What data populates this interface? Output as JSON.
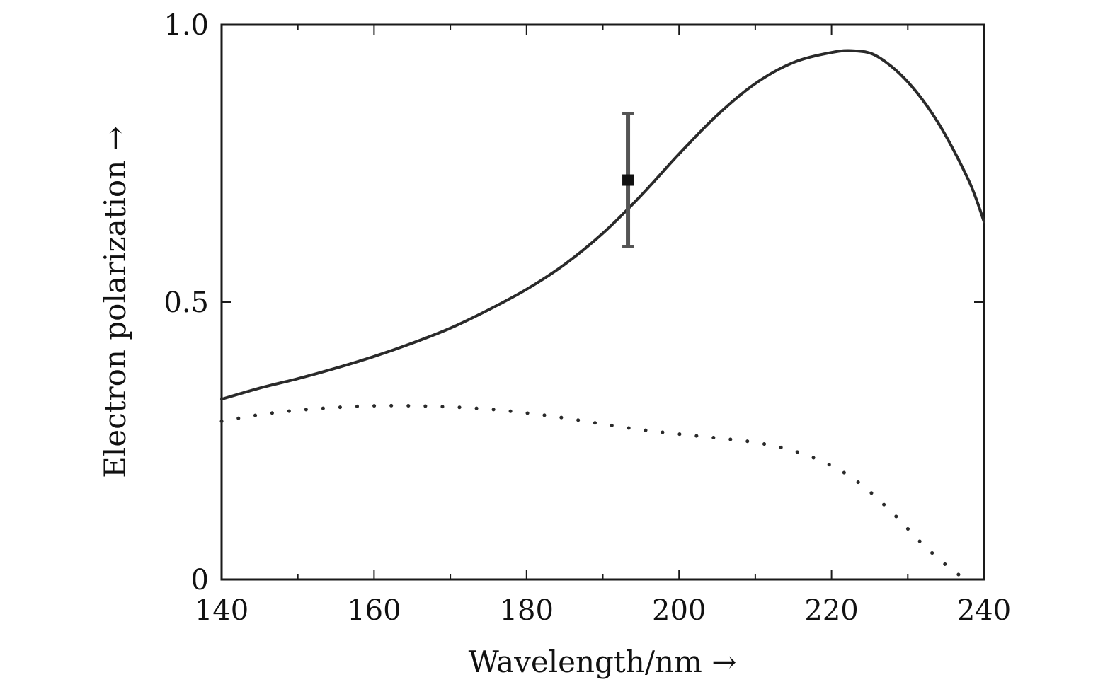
{
  "chart_data": {
    "type": "line",
    "title": "",
    "xlabel": "Wavelength/nm →",
    "ylabel": "Electron polarization →",
    "xlim": [
      140,
      240
    ],
    "ylim": [
      0,
      1.0
    ],
    "x_ticks": [
      140,
      160,
      180,
      200,
      220,
      240
    ],
    "x_minor_ticks": [
      150,
      170,
      190,
      210,
      230
    ],
    "x_tick_labels": [
      "140",
      "160",
      "180",
      "200",
      "220",
      "240"
    ],
    "y_ticks": [
      0,
      0.5,
      1.0
    ],
    "y_tick_labels": [
      "0",
      "0.5",
      "1.0"
    ],
    "grid": false,
    "legend": "none",
    "series": [
      {
        "style": "solid",
        "color": "#2a2a2a",
        "x": [
          140,
          145,
          150,
          155,
          160,
          165,
          170,
          175,
          180,
          185,
          190,
          195,
          200,
          205,
          210,
          215,
          220,
          223,
          226,
          230,
          234,
          238,
          240
        ],
        "y": [
          0.325,
          0.345,
          0.362,
          0.381,
          0.402,
          0.426,
          0.453,
          0.486,
          0.523,
          0.568,
          0.624,
          0.692,
          0.767,
          0.837,
          0.894,
          0.932,
          0.95,
          0.953,
          0.943,
          0.897,
          0.823,
          0.719,
          0.645
        ]
      },
      {
        "style": "dotted",
        "color": "#2a2a2a",
        "x": [
          140,
          145,
          150,
          155,
          160,
          165,
          170,
          175,
          180,
          185,
          190,
          195,
          200,
          205,
          210,
          215,
          220,
          224,
          228,
          232,
          236,
          238
        ],
        "y": [
          0.285,
          0.297,
          0.305,
          0.31,
          0.313,
          0.313,
          0.311,
          0.307,
          0.3,
          0.291,
          0.28,
          0.27,
          0.262,
          0.255,
          0.247,
          0.232,
          0.205,
          0.17,
          0.12,
          0.063,
          0.015,
          0.0
        ]
      }
    ],
    "error_points": [
      {
        "x": 193.3,
        "y": 0.72,
        "y_low": 0.6,
        "y_high": 0.84
      }
    ]
  }
}
